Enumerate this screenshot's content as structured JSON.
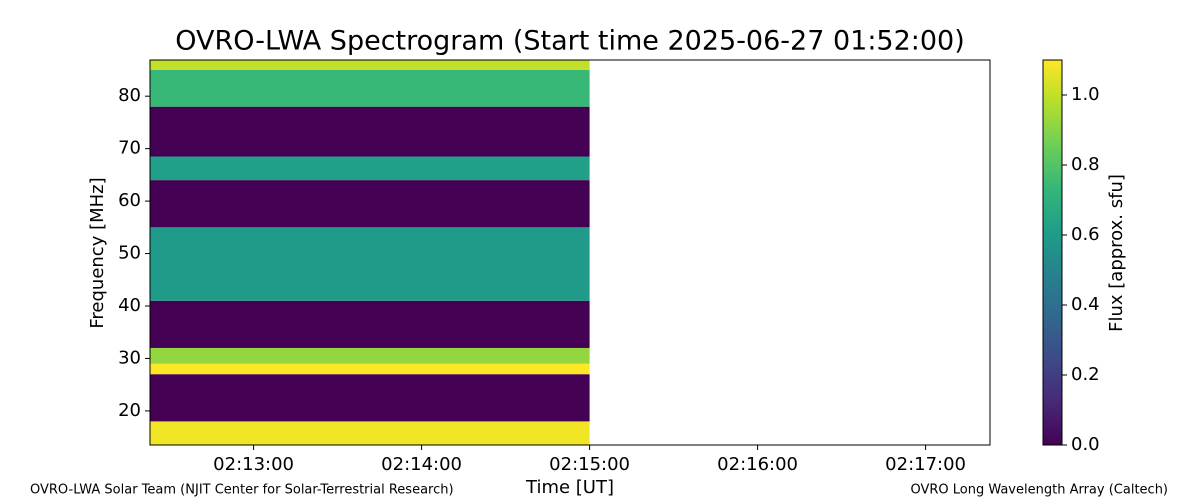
{
  "chart_data": {
    "type": "spectrogram",
    "title": "OVRO-LWA Spectrogram (Start time 2025-06-27 01:52:00)",
    "xlabel": "Time [UT]",
    "ylabel": "Frequency [MHz]",
    "colorbar_label": "Flux [approx. sfu]",
    "footer_left": "OVRO-LWA Solar Team (NJIT Center for Solar-Terrestrial Research)",
    "footer_right": "OVRO Long Wavelength Array (Caltech)",
    "colormap": "viridis",
    "xlim": [
      7943,
      8243
    ],
    "xticks": [
      {
        "value": 7980,
        "label": "02:13:00"
      },
      {
        "value": 8040,
        "label": "02:14:00"
      },
      {
        "value": 8100,
        "label": "02:15:00"
      },
      {
        "value": 8160,
        "label": "02:16:00"
      },
      {
        "value": 8220,
        "label": "02:17:00"
      }
    ],
    "ylim": [
      13.5,
      86.9
    ],
    "yticks": [
      20,
      30,
      40,
      50,
      60,
      70,
      80
    ],
    "clim": [
      0,
      1.1
    ],
    "cticks": [
      {
        "value": 0,
        "label": "0.0"
      },
      0.2,
      0.4,
      0.6,
      0.8,
      {
        "value": 1,
        "label": "1.0"
      }
    ],
    "time_range": [
      7943,
      8100
    ],
    "bands": [
      {
        "freq": [
          13.5,
          18
        ],
        "value": 1.08
      },
      {
        "freq": [
          18,
          27
        ],
        "value": 0
      },
      {
        "freq": [
          27,
          29
        ],
        "value": 1.1
      },
      {
        "freq": [
          29,
          32
        ],
        "value": 0.92
      },
      {
        "freq": [
          32,
          41
        ],
        "value": 0
      },
      {
        "freq": [
          41,
          55
        ],
        "value": 0.6
      },
      {
        "freq": [
          55,
          64
        ],
        "value": 0
      },
      {
        "freq": [
          64,
          68.5
        ],
        "value": 0.62
      },
      {
        "freq": [
          68.5,
          78
        ],
        "value": 0
      },
      {
        "freq": [
          78,
          85
        ],
        "value": 0.74
      },
      {
        "freq": [
          85,
          86.9
        ],
        "value": 1.0
      }
    ]
  }
}
